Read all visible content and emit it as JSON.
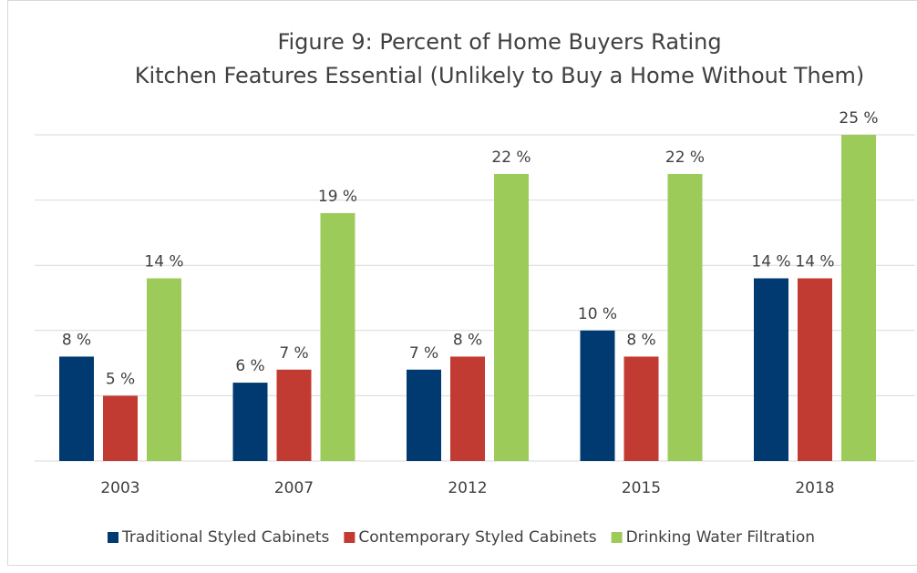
{
  "chart_data": {
    "type": "bar",
    "title": [
      "Figure 9: Percent of Home Buyers Rating",
      "Kitchen Features Essential (Unlikely to Buy a Home Without Them)"
    ],
    "categories": [
      "2003",
      "2007",
      "2012",
      "2015",
      "2018"
    ],
    "series": [
      {
        "name": "Traditional Styled Cabinets",
        "color": "#003a70",
        "values": [
          8,
          6,
          7,
          10,
          14
        ],
        "value_labels": [
          "8 %",
          "6 %",
          "7 %",
          "10 %",
          "14 %"
        ]
      },
      {
        "name": "Contemporary Styled Cabinets",
        "color": "#c23b33",
        "values": [
          5,
          7,
          8,
          8,
          14
        ],
        "value_labels": [
          "5 %",
          "7 %",
          "8 %",
          "8 %",
          "14 %"
        ]
      },
      {
        "name": "Drinking Water Filtration",
        "color": "#9dcb5a",
        "values": [
          14,
          19,
          22,
          22,
          25
        ],
        "value_labels": [
          "14 %",
          "19 %",
          "22 %",
          "22 %",
          "25 %"
        ]
      }
    ],
    "ylim": [
      0,
      25
    ],
    "yticks": [
      0,
      5,
      10,
      15,
      20,
      25
    ],
    "grid": true,
    "legend": "bottom"
  }
}
